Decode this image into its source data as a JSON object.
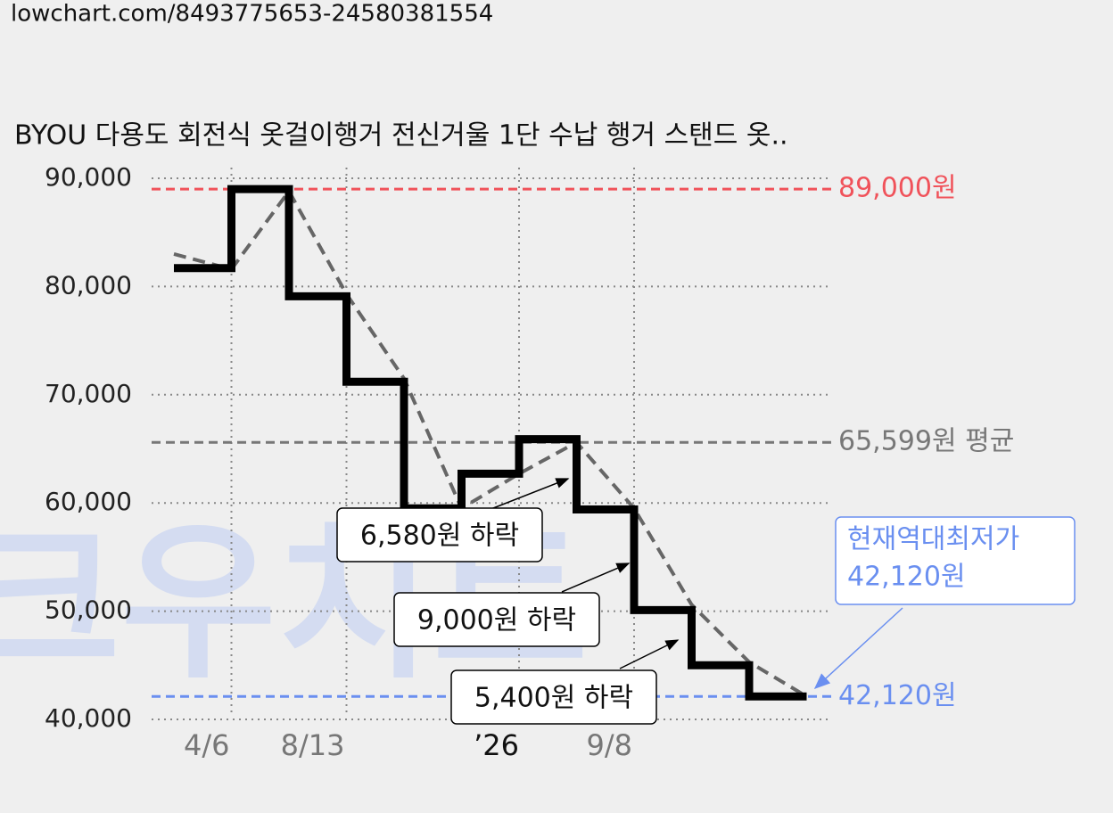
{
  "url": "lowchart.com/8493775653-24580381554",
  "watermark": "크우치트",
  "chart_data": {
    "type": "line",
    "title": "BYOU 다용도 회전식 옷걸이행거 전신거울 1단 수납 행거 스탠드 옷..",
    "categories": [
      null,
      "4/6",
      null,
      "8/13",
      null,
      null,
      "’26",
      null,
      "9/8",
      null,
      null,
      null
    ],
    "series": [
      {
        "color": "#000000",
        "line_style": "step",
        "values": [
          81700,
          89000,
          79100,
          71200,
          59500,
          62700,
          65900,
          59400,
          50100,
          45000,
          42120,
          42120
        ]
      },
      {
        "color": "#666666",
        "line_style": "dashed",
        "values": [
          83000,
          81600,
          88800,
          79300,
          71500,
          59500,
          62700,
          65600,
          59500,
          50600,
          45300,
          42120
        ]
      }
    ],
    "ylim": [
      40000,
      90000
    ],
    "yticks": [
      {
        "value": 40000,
        "label": "40,000"
      },
      {
        "value": 50000,
        "label": "50,000"
      },
      {
        "value": 60000,
        "label": "60,000"
      },
      {
        "value": 70000,
        "label": "70,000"
      },
      {
        "value": 80000,
        "label": "80,000"
      },
      {
        "value": 90000,
        "label": "90,000"
      }
    ],
    "grid": true,
    "reference_lines": [
      {
        "value": 89000,
        "label": "89,000원",
        "color": "#f0525a"
      },
      {
        "value": 65599,
        "label": "65,599원 평균",
        "color": "#777777"
      },
      {
        "value": 42120,
        "label": "42,120원",
        "color": "#6a8ff0"
      }
    ],
    "annotations": [
      "6,580원 하락",
      "9,000원 하락",
      "5,400원 하락"
    ],
    "callout": [
      "현재역대최저가",
      "42,120원"
    ]
  }
}
